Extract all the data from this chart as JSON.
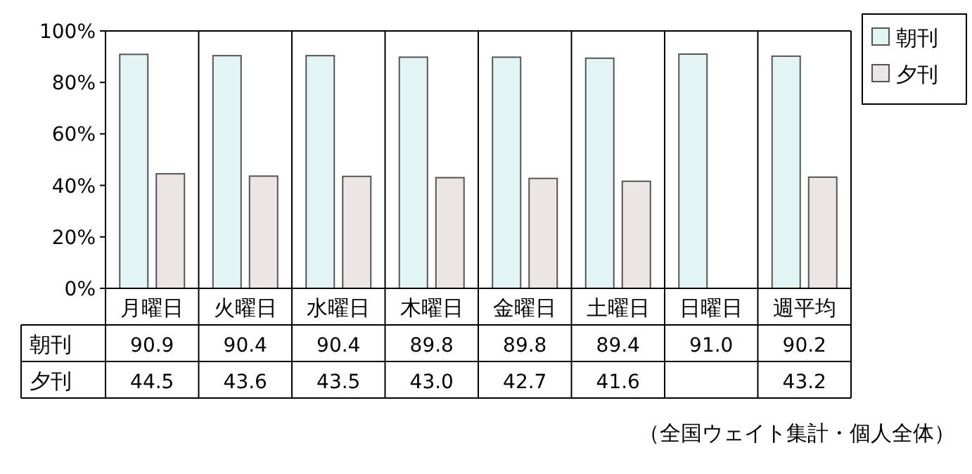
{
  "chart_data": {
    "type": "bar",
    "categories": [
      "月曜日",
      "火曜日",
      "水曜日",
      "木曜日",
      "金曜日",
      "土曜日",
      "日曜日",
      "週平均"
    ],
    "series": [
      {
        "name": "朝刊",
        "color": "#e2f4f4",
        "values": [
          90.9,
          90.4,
          90.4,
          89.8,
          89.8,
          89.4,
          91.0,
          90.2
        ],
        "value_labels": [
          "90.9",
          "90.4",
          "90.4",
          "89.8",
          "89.8",
          "89.4",
          "91.0",
          "90.2"
        ]
      },
      {
        "name": "夕刊",
        "color": "#ebe5e5",
        "values": [
          44.5,
          43.6,
          43.5,
          43.0,
          42.7,
          41.6,
          null,
          43.2
        ],
        "value_labels": [
          "44.5",
          "43.6",
          "43.5",
          "43.0",
          "42.7",
          "41.6",
          null,
          "43.2"
        ]
      }
    ],
    "ylim": [
      0,
      100
    ],
    "yticks": [
      {
        "value": 0,
        "label": "0%"
      },
      {
        "value": 20,
        "label": "20%"
      },
      {
        "value": 40,
        "label": "40%"
      },
      {
        "value": 60,
        "label": "60%"
      },
      {
        "value": 80,
        "label": "80%"
      },
      {
        "value": 100,
        "label": "100%"
      }
    ],
    "legend": "right",
    "annotations": [
      "（全国ウェイト集計・個人全体）"
    ]
  }
}
